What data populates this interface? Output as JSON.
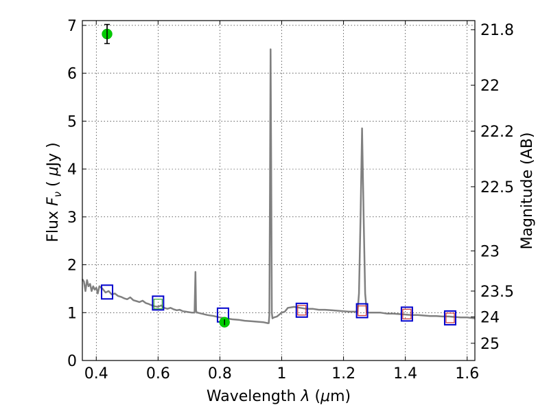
{
  "chart_data": {
    "type": "line",
    "xlabel_text": "Wavelength",
    "xlabel_symbol": "λ",
    "xlabel_unit_open": "(",
    "xlabel_unit_mu": "μ",
    "xlabel_unit_rest": "m)",
    "ylabel_text": "Flux",
    "ylabel_symbol": "F",
    "ylabel_subscript": "ν",
    "ylabel_unit_open": "(",
    "ylabel_unit_mu": "μ",
    "ylabel_unit_rest": "Jy )",
    "y2label": "Magnitude (AB)",
    "xlim": [
      0.355,
      1.625
    ],
    "ylim": [
      0,
      7.1
    ],
    "grid": true,
    "x_ticks": [
      {
        "value": 0.4,
        "label": "0.4"
      },
      {
        "value": 0.6,
        "label": "0.6"
      },
      {
        "value": 0.8,
        "label": "0.8"
      },
      {
        "value": 1.0,
        "label": "1"
      },
      {
        "value": 1.2,
        "label": "1.2"
      },
      {
        "value": 1.4,
        "label": "1.4"
      },
      {
        "value": 1.6,
        "label": "1.6"
      }
    ],
    "y_ticks": [
      {
        "value": 0,
        "label": "0"
      },
      {
        "value": 1,
        "label": "1"
      },
      {
        "value": 2,
        "label": "2"
      },
      {
        "value": 3,
        "label": "3"
      },
      {
        "value": 4,
        "label": "4"
      },
      {
        "value": 5,
        "label": "5"
      },
      {
        "value": 6,
        "label": "6"
      },
      {
        "value": 7,
        "label": "7"
      }
    ],
    "y2_ticks": [
      {
        "flux": 6.91,
        "label": "21.8"
      },
      {
        "flux": 5.75,
        "label": "22"
      },
      {
        "flux": 4.79,
        "label": "22.2"
      },
      {
        "flux": 3.63,
        "label": "22.5"
      },
      {
        "flux": 2.29,
        "label": "23"
      },
      {
        "flux": 1.45,
        "label": "23.5"
      },
      {
        "flux": 0.91,
        "label": "24"
      },
      {
        "flux": 0.36,
        "label": "25"
      }
    ],
    "series": [
      {
        "style": "line",
        "color": "#808080",
        "x": [
          0.355,
          0.36,
          0.365,
          0.37,
          0.375,
          0.38,
          0.385,
          0.39,
          0.395,
          0.4,
          0.405,
          0.41,
          0.42,
          0.43,
          0.44,
          0.45,
          0.46,
          0.47,
          0.48,
          0.49,
          0.5,
          0.51,
          0.52,
          0.53,
          0.54,
          0.55,
          0.56,
          0.57,
          0.58,
          0.59,
          0.6,
          0.61,
          0.62,
          0.63,
          0.64,
          0.65,
          0.66,
          0.67,
          0.68,
          0.69,
          0.7,
          0.71,
          0.718,
          0.721,
          0.723,
          0.725,
          0.728,
          0.74,
          0.76,
          0.78,
          0.8,
          0.82,
          0.84,
          0.86,
          0.88,
          0.9,
          0.92,
          0.94,
          0.955,
          0.958,
          0.96,
          0.962,
          0.964,
          0.966,
          0.968,
          0.97,
          0.975,
          0.985,
          1.0,
          1.01,
          1.02,
          1.04,
          1.06,
          1.08,
          1.1,
          1.12,
          1.14,
          1.16,
          1.18,
          1.2,
          1.22,
          1.24,
          1.245,
          1.25,
          1.255,
          1.26,
          1.265,
          1.27,
          1.275,
          1.28,
          1.3,
          1.32,
          1.34,
          1.36,
          1.38,
          1.4,
          1.42,
          1.44,
          1.46,
          1.48,
          1.5,
          1.52,
          1.54,
          1.56,
          1.58,
          1.6,
          1.625
        ],
        "y": [
          1.7,
          1.65,
          1.45,
          1.68,
          1.55,
          1.6,
          1.45,
          1.55,
          1.48,
          1.52,
          1.4,
          1.55,
          1.5,
          1.42,
          1.45,
          1.38,
          1.4,
          1.35,
          1.33,
          1.3,
          1.28,
          1.32,
          1.26,
          1.24,
          1.22,
          1.25,
          1.2,
          1.18,
          1.15,
          1.13,
          1.12,
          1.15,
          1.1,
          1.08,
          1.1,
          1.07,
          1.05,
          1.06,
          1.03,
          1.02,
          1.01,
          1.0,
          1.0,
          1.85,
          1.05,
          1.0,
          1.0,
          0.98,
          0.95,
          0.93,
          0.9,
          0.88,
          0.86,
          0.85,
          0.83,
          0.82,
          0.81,
          0.8,
          0.78,
          0.78,
          0.95,
          3.5,
          6.5,
          4.0,
          1.0,
          0.88,
          0.9,
          0.92,
          1.0,
          1.02,
          1.1,
          1.12,
          1.1,
          1.08,
          1.08,
          1.06,
          1.06,
          1.05,
          1.04,
          1.03,
          1.02,
          1.02,
          1.0,
          1.4,
          3.0,
          4.85,
          3.0,
          1.4,
          1.02,
          1.0,
          1.0,
          1.0,
          0.98,
          0.98,
          0.97,
          0.96,
          0.95,
          0.95,
          0.94,
          0.93,
          0.93,
          0.92,
          0.92,
          0.91,
          0.9,
          0.9,
          0.88
        ]
      },
      {
        "style": "open-square",
        "color": "#0000cc",
        "x": [
          0.435,
          0.6,
          0.81,
          1.065,
          1.26,
          1.405,
          1.545
        ],
        "y": [
          1.43,
          1.2,
          0.95,
          1.05,
          1.04,
          0.97,
          0.89
        ]
      },
      {
        "style": "open-square-small",
        "color": "#cc3333",
        "x": [
          1.065,
          1.26,
          1.405,
          1.545
        ],
        "y": [
          1.05,
          1.04,
          0.97,
          0.89
        ]
      },
      {
        "style": "open-square-small",
        "color": "#33aa33",
        "x": [
          0.6
        ],
        "y": [
          1.18
        ]
      },
      {
        "style": "filled-circle",
        "color": "#00cc00",
        "x": [
          0.435,
          0.815
        ],
        "y": [
          6.82,
          0.8
        ],
        "yerr": [
          0.2,
          0.06
        ]
      }
    ]
  }
}
